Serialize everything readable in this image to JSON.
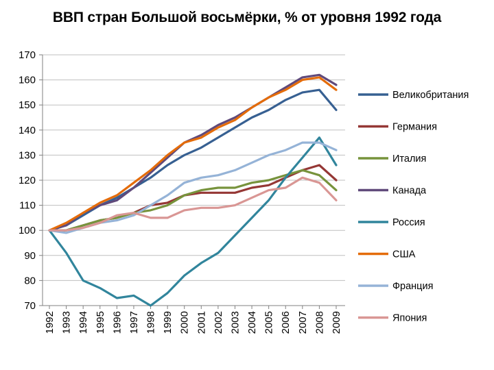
{
  "chart_data": {
    "type": "line",
    "title": "ВВП стран Большой восьмёрки, % от уровня 1992 года",
    "xlabel": "",
    "ylabel": "",
    "ylim": [
      70,
      170
    ],
    "yticks": [
      70,
      80,
      90,
      100,
      110,
      120,
      130,
      140,
      150,
      160,
      170
    ],
    "grid": true,
    "legend": "right",
    "x": [
      "1992",
      "1993",
      "1994",
      "1995",
      "1996",
      "1997",
      "1998",
      "1999",
      "2000",
      "2001",
      "2002",
      "2003",
      "2004",
      "2005",
      "2006",
      "2007",
      "2008",
      "2009"
    ],
    "series": [
      {
        "name": "Великобритания",
        "color": "#376092",
        "values": [
          100,
          102,
          106,
          110,
          113,
          117,
          121,
          126,
          130,
          133,
          137,
          141,
          145,
          148,
          152,
          155,
          156,
          148
        ]
      },
      {
        "name": "Германия",
        "color": "#953735",
        "values": [
          100,
          100,
          102,
          104,
          105,
          107,
          110,
          111,
          114,
          115,
          115,
          115,
          117,
          118,
          121,
          124,
          126,
          120
        ]
      },
      {
        "name": "Италия",
        "color": "#77933C",
        "values": [
          100,
          100,
          102,
          104,
          105,
          107,
          108,
          110,
          114,
          116,
          117,
          117,
          119,
          120,
          122,
          124,
          122,
          116
        ]
      },
      {
        "name": "Канада",
        "color": "#604A7B",
        "values": [
          100,
          102,
          107,
          110,
          112,
          117,
          123,
          129,
          135,
          138,
          142,
          145,
          149,
          153,
          157,
          161,
          162,
          158
        ]
      },
      {
        "name": "Россия",
        "color": "#31859C",
        "values": [
          100,
          91,
          80,
          77,
          73,
          74,
          70,
          75,
          82,
          87,
          91,
          98,
          105,
          112,
          121,
          129,
          137,
          126
        ]
      },
      {
        "name": "США",
        "color": "#E46C0A",
        "values": [
          100,
          103,
          107,
          111,
          114,
          119,
          124,
          130,
          135,
          137,
          141,
          144,
          149,
          153,
          156,
          160,
          161,
          156
        ]
      },
      {
        "name": "Франция",
        "color": "#95B3D7",
        "values": [
          100,
          99,
          101,
          103,
          104,
          106,
          110,
          114,
          119,
          121,
          122,
          124,
          127,
          130,
          132,
          135,
          135,
          132
        ]
      },
      {
        "name": "Япония",
        "color": "#D99694",
        "values": [
          100,
          100,
          101,
          103,
          106,
          107,
          105,
          105,
          108,
          109,
          109,
          110,
          113,
          116,
          117,
          121,
          119,
          112
        ]
      }
    ]
  }
}
